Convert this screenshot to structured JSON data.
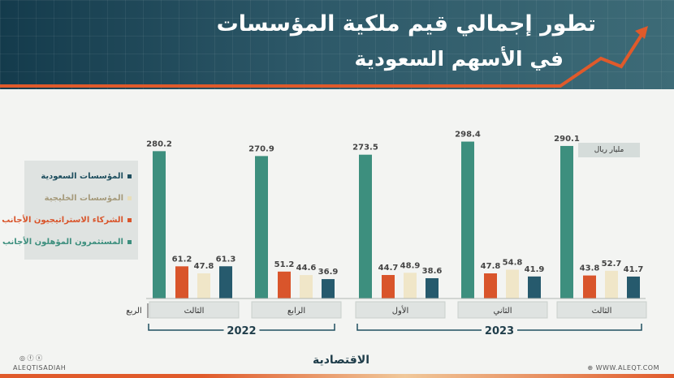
{
  "header": {
    "title": "تطور إجمالي قيم ملكية المؤسسات",
    "subtitle": "في الأسهم السعودية"
  },
  "chart_data": {
    "type": "bar",
    "unit_label": "مليار ريال",
    "quarter_axis_label": "الربع",
    "groups": [
      {
        "quarter": "الثالث",
        "year": "2022"
      },
      {
        "quarter": "الرابع",
        "year": "2022"
      },
      {
        "quarter": "الأول",
        "year": "2023"
      },
      {
        "quarter": "الثاني",
        "year": "2023"
      },
      {
        "quarter": "الثالث",
        "year": "2023"
      }
    ],
    "years": [
      "2022",
      "2023"
    ],
    "series": [
      {
        "name": "المؤسسات السعودية",
        "color": "#3d8f7e",
        "values": [
          280.2,
          270.9,
          273.5,
          298.4,
          290.1
        ]
      },
      {
        "name": "المؤسسات الخليجية",
        "color": "#f0e6c8",
        "values": [
          47.8,
          44.6,
          48.9,
          54.8,
          52.7
        ]
      },
      {
        "name": "الشركاء الاستراتيجيون الأجانب",
        "color": "#d9552b",
        "values": [
          61.2,
          51.2,
          44.7,
          47.8,
          43.8
        ]
      },
      {
        "name": "المستثمرون المؤهلون الأجانب",
        "color": "#265a6d",
        "values": [
          61.3,
          36.9,
          38.6,
          41.9,
          41.7
        ]
      }
    ],
    "ylim": [
      0,
      300
    ]
  },
  "legend_colors": {
    "المؤسسات السعودية": "#1f4f5f",
    "المؤسسات الخليجية": "#b8ad8e",
    "الشركاء الاستراتيجيون الأجانب": "#d9552b",
    "المستثمرون المؤهلون الأجانب": "#3d8f7e"
  },
  "footer": {
    "logo": "الاقتصادية",
    "handle": "ALEQTISADIAH",
    "website": "WWW.ALEQT.COM",
    "social_icons": [
      "instagram-icon",
      "facebook-icon",
      "x-icon"
    ],
    "site_icon": "globe-icon"
  },
  "accent_color": "#e05a2b"
}
